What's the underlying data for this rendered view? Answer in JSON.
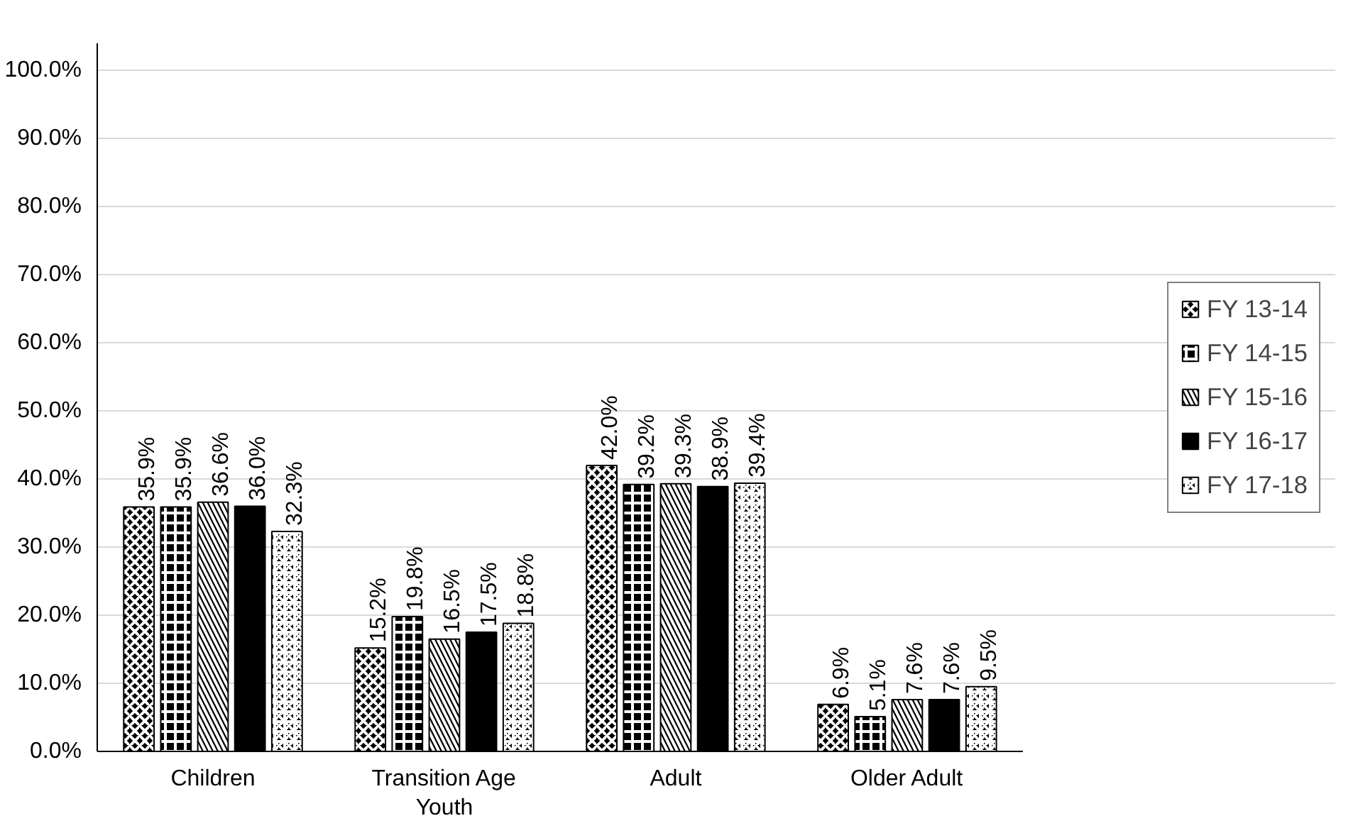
{
  "chart_data": {
    "type": "bar",
    "categories": [
      "Children",
      "Transition Age Youth",
      "Adult",
      "Older Adult"
    ],
    "series": [
      {
        "name": "FY 13-14",
        "color": "#000000",
        "values": [
          35.9,
          15.2,
          42.0,
          6.9
        ]
      },
      {
        "name": "FY 14-15",
        "color": "#000000",
        "values": [
          35.9,
          19.8,
          39.2,
          5.1
        ]
      },
      {
        "name": "FY 15-16",
        "color": "#000000",
        "values": [
          36.6,
          16.5,
          39.3,
          7.6
        ]
      },
      {
        "name": "FY 16-17",
        "color": "#000000",
        "values": [
          36.0,
          17.5,
          38.9,
          7.6
        ]
      },
      {
        "name": "FY 17-18",
        "color": "#000000",
        "values": [
          32.3,
          18.8,
          39.4,
          9.5
        ]
      }
    ],
    "value_labels": [
      [
        "35.9%",
        "15.2%",
        "42.0%",
        "6.9%"
      ],
      [
        "35.9%",
        "19.8%",
        "39.2%",
        "5.1%"
      ],
      [
        "36.6%",
        "16.5%",
        "39.3%",
        "7.6%"
      ],
      [
        "36.0%",
        "17.5%",
        "38.9%",
        "7.6%"
      ],
      [
        "32.3%",
        "18.8%",
        "39.4%",
        "9.5%"
      ]
    ],
    "ylim": [
      0,
      104
    ],
    "yticks": [
      {
        "value": 0,
        "label": "0.0%"
      },
      {
        "value": 10,
        "label": "10.0%"
      },
      {
        "value": 20,
        "label": "20.0%"
      },
      {
        "value": 30,
        "label": "30.0%"
      },
      {
        "value": 40,
        "label": "40.0%"
      },
      {
        "value": 50,
        "label": "50.0%"
      },
      {
        "value": 60,
        "label": "60.0%"
      },
      {
        "value": 70,
        "label": "70.0%"
      },
      {
        "value": 80,
        "label": "80.0%"
      },
      {
        "value": 90,
        "label": "90.0%"
      },
      {
        "value": 100,
        "label": "100.0%"
      }
    ],
    "grid": "y",
    "legend": "right"
  }
}
